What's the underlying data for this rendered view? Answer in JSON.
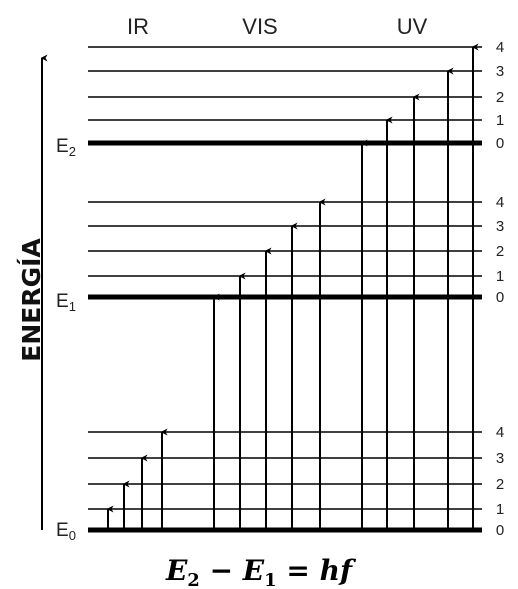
{
  "regions": [
    "IR",
    "VIS",
    "UV"
  ],
  "axis_label": "ENERGÍA",
  "electronic_levels": [
    {
      "base": "E",
      "sub": "0"
    },
    {
      "base": "E",
      "sub": "1"
    },
    {
      "base": "E",
      "sub": "2"
    }
  ],
  "vibrational_labels": [
    "0",
    "1",
    "2",
    "3",
    "4"
  ],
  "equation": {
    "left_base": "E",
    "left_sub": "2",
    "minus": " − ",
    "right_base": "E",
    "right_sub": "1",
    "equals_rhs": " = hf"
  }
}
